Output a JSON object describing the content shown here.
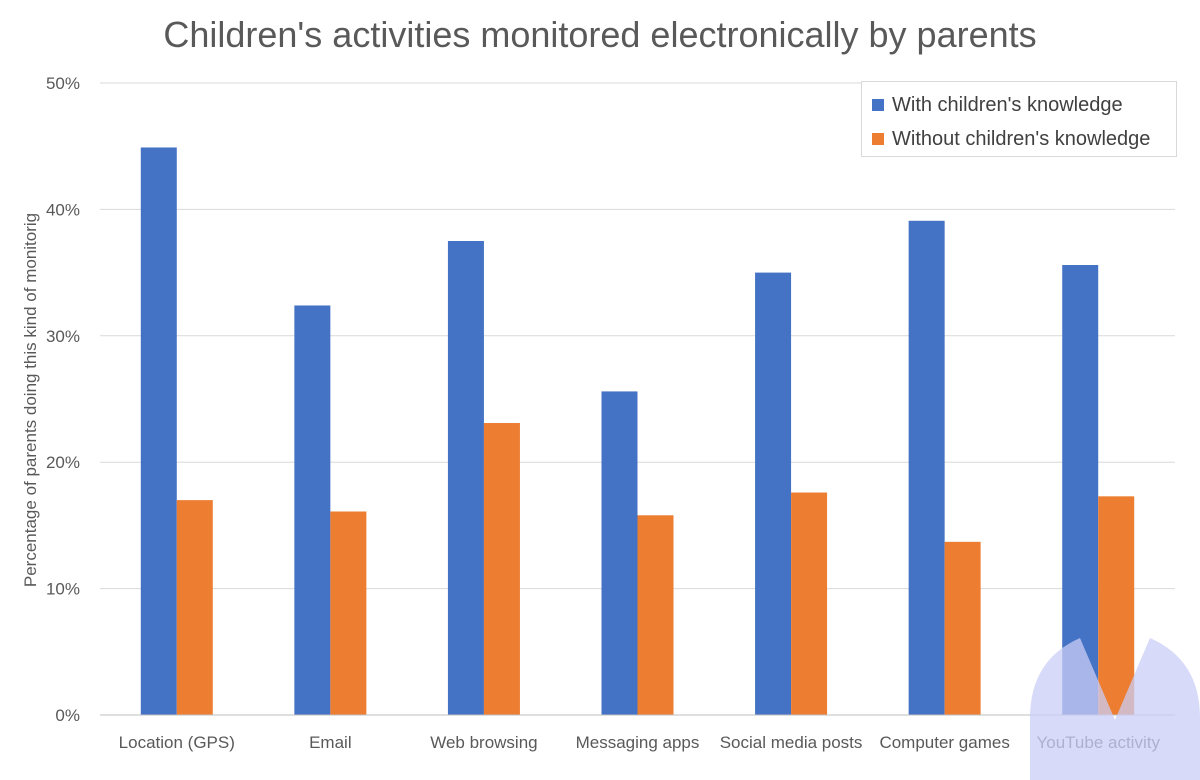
{
  "chart_data": {
    "type": "bar",
    "title": "Children's activities monitored electronically by parents",
    "ylabel": "Percentage of parents doing this kind of monitorig",
    "xlabel": "",
    "ylim": [
      0,
      50
    ],
    "yticks": [
      "0%",
      "10%",
      "20%",
      "30%",
      "40%",
      "50%"
    ],
    "ytick_values": [
      0,
      10,
      20,
      30,
      40,
      50
    ],
    "grid": true,
    "legend_position": "top-right",
    "categories": [
      "Location (GPS)",
      "Email",
      "Web browsing",
      "Messaging apps",
      "Social media posts",
      "Computer games",
      "YouTube activity"
    ],
    "series": [
      {
        "name": "With children's knowledge",
        "color": "#4472c4",
        "values": [
          44.9,
          32.4,
          37.5,
          25.6,
          35.0,
          39.1,
          35.6
        ]
      },
      {
        "name": "Without children's knowledge",
        "color": "#ed7d31",
        "values": [
          17.0,
          16.1,
          23.1,
          15.8,
          17.6,
          13.7,
          17.3
        ]
      }
    ]
  }
}
